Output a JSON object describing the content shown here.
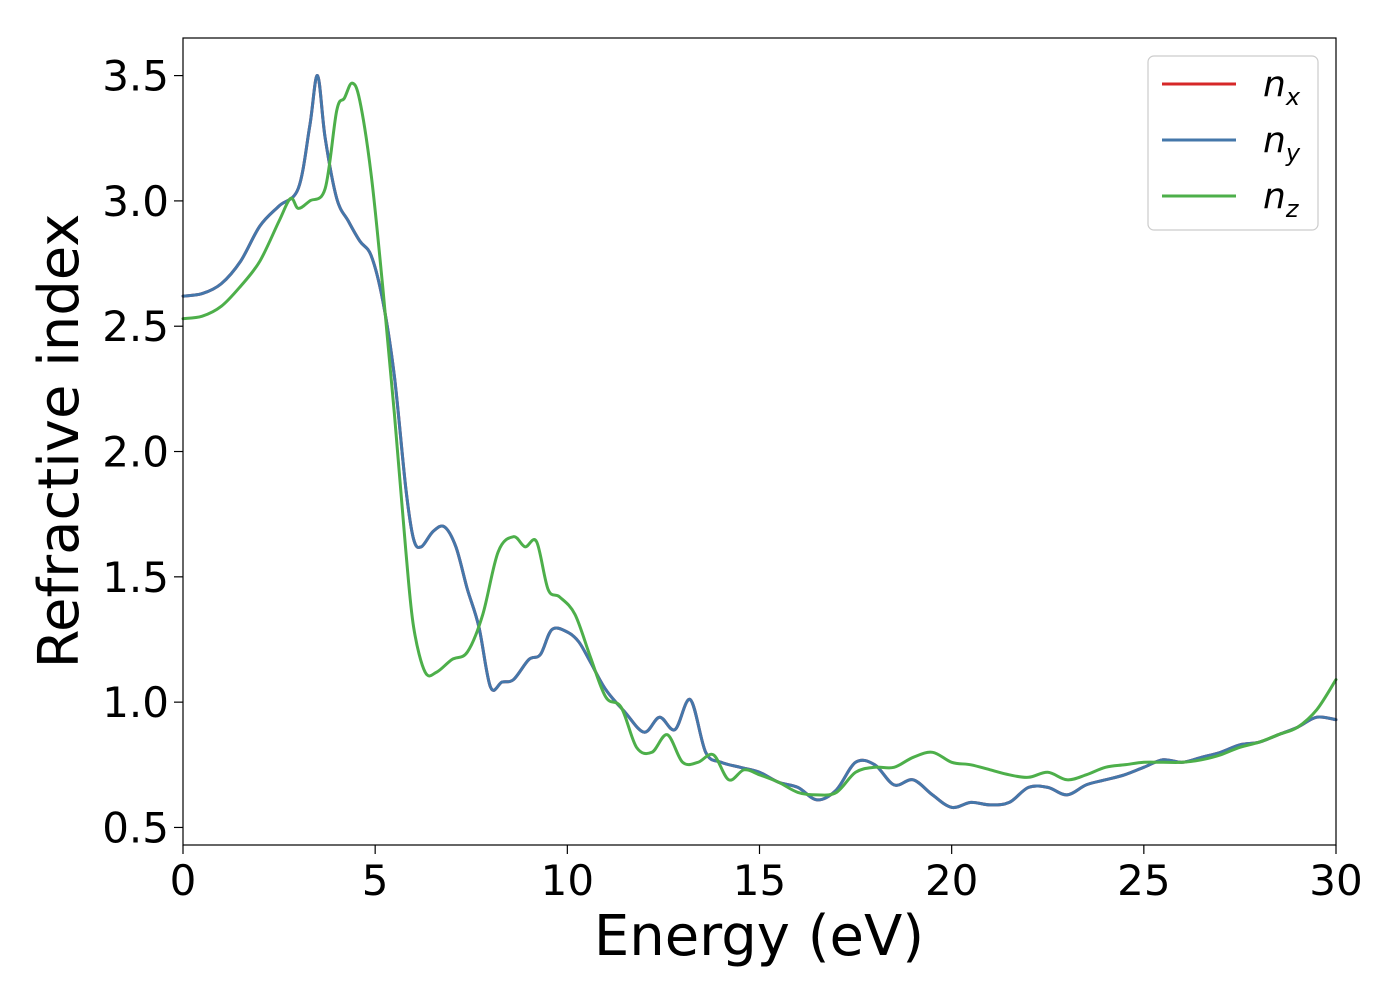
{
  "chart_data": {
    "type": "line",
    "xlabel": "Energy (eV)",
    "ylabel": "Refractive index",
    "xlim": [
      0,
      30
    ],
    "ylim": [
      0.43,
      3.65
    ],
    "xticks": [
      "0",
      "5",
      "10",
      "15",
      "20",
      "25",
      "30"
    ],
    "yticks": [
      "0.5",
      "1.0",
      "1.5",
      "2.0",
      "2.5",
      "3.0",
      "3.5"
    ],
    "grid": false,
    "legend_position": "top-right",
    "series": [
      {
        "name": "n_x",
        "label_base": "n",
        "label_sub": "x",
        "color": "#d62728",
        "x": [
          0,
          0.5,
          1,
          1.5,
          2,
          2.5,
          3,
          3.3,
          3.5,
          3.7,
          4,
          4.3,
          4.6,
          4.9,
          5.2,
          5.5,
          5.8,
          6,
          6.2,
          6.5,
          6.8,
          7.1,
          7.4,
          7.7,
          8,
          8.3,
          8.6,
          9,
          9.3,
          9.6,
          10,
          10.3,
          10.6,
          11,
          11.5,
          12,
          12.4,
          12.8,
          13.2,
          13.6,
          14,
          14.5,
          15,
          15.5,
          16,
          16.5,
          17,
          17.5,
          18,
          18.5,
          19,
          19.5,
          20,
          20.5,
          21,
          21.5,
          22,
          22.5,
          23,
          23.5,
          24,
          24.5,
          25,
          25.5,
          26,
          26.5,
          27,
          27.5,
          28,
          28.5,
          29,
          29.5,
          30
        ],
        "y": [
          2.62,
          2.63,
          2.67,
          2.76,
          2.9,
          2.98,
          3.05,
          3.3,
          3.5,
          3.25,
          3.01,
          2.92,
          2.84,
          2.78,
          2.6,
          2.3,
          1.85,
          1.65,
          1.62,
          1.68,
          1.7,
          1.62,
          1.45,
          1.3,
          1.06,
          1.08,
          1.09,
          1.17,
          1.19,
          1.29,
          1.28,
          1.24,
          1.16,
          1.05,
          0.96,
          0.88,
          0.94,
          0.89,
          1.01,
          0.8,
          0.76,
          0.74,
          0.72,
          0.68,
          0.66,
          0.61,
          0.65,
          0.76,
          0.75,
          0.67,
          0.69,
          0.63,
          0.58,
          0.6,
          0.59,
          0.6,
          0.66,
          0.66,
          0.63,
          0.67,
          0.69,
          0.71,
          0.74,
          0.77,
          0.76,
          0.78,
          0.8,
          0.83,
          0.84,
          0.87,
          0.9,
          0.94,
          0.93
        ]
      },
      {
        "name": "n_y",
        "label_base": "n",
        "label_sub": "y",
        "color": "#4477aa",
        "x": [
          0,
          0.5,
          1,
          1.5,
          2,
          2.5,
          3,
          3.3,
          3.5,
          3.7,
          4,
          4.3,
          4.6,
          4.9,
          5.2,
          5.5,
          5.8,
          6,
          6.2,
          6.5,
          6.8,
          7.1,
          7.4,
          7.7,
          8,
          8.3,
          8.6,
          9,
          9.3,
          9.6,
          10,
          10.3,
          10.6,
          11,
          11.5,
          12,
          12.4,
          12.8,
          13.2,
          13.6,
          14,
          14.5,
          15,
          15.5,
          16,
          16.5,
          17,
          17.5,
          18,
          18.5,
          19,
          19.5,
          20,
          20.5,
          21,
          21.5,
          22,
          22.5,
          23,
          23.5,
          24,
          24.5,
          25,
          25.5,
          26,
          26.5,
          27,
          27.5,
          28,
          28.5,
          29,
          29.5,
          30
        ],
        "y": [
          2.62,
          2.63,
          2.67,
          2.76,
          2.9,
          2.98,
          3.05,
          3.3,
          3.5,
          3.25,
          3.01,
          2.92,
          2.84,
          2.78,
          2.6,
          2.3,
          1.85,
          1.65,
          1.62,
          1.68,
          1.7,
          1.62,
          1.45,
          1.3,
          1.06,
          1.08,
          1.09,
          1.17,
          1.19,
          1.29,
          1.28,
          1.24,
          1.16,
          1.05,
          0.96,
          0.88,
          0.94,
          0.89,
          1.01,
          0.8,
          0.76,
          0.74,
          0.72,
          0.68,
          0.66,
          0.61,
          0.65,
          0.76,
          0.75,
          0.67,
          0.69,
          0.63,
          0.58,
          0.6,
          0.59,
          0.6,
          0.66,
          0.66,
          0.63,
          0.67,
          0.69,
          0.71,
          0.74,
          0.77,
          0.76,
          0.78,
          0.8,
          0.83,
          0.84,
          0.87,
          0.9,
          0.94,
          0.93
        ]
      },
      {
        "name": "n_z",
        "label_base": "n",
        "label_sub": "z",
        "color": "#4daf4a",
        "x": [
          0,
          0.5,
          1,
          1.5,
          2,
          2.5,
          2.8,
          3,
          3.3,
          3.7,
          4,
          4.2,
          4.4,
          4.6,
          4.9,
          5.2,
          5.5,
          5.8,
          6,
          6.3,
          6.6,
          7,
          7.4,
          7.8,
          8.2,
          8.6,
          8.9,
          9.2,
          9.5,
          9.8,
          10.2,
          10.6,
          11,
          11.4,
          11.8,
          12.2,
          12.6,
          13,
          13.4,
          13.8,
          14.2,
          14.6,
          15,
          15.5,
          16,
          16.5,
          17,
          17.5,
          18,
          18.5,
          19,
          19.5,
          20,
          20.5,
          21,
          21.5,
          22,
          22.5,
          23,
          23.5,
          24,
          24.5,
          25,
          25.5,
          26,
          26.5,
          27,
          27.5,
          28,
          28.5,
          29,
          29.5,
          30
        ],
        "y": [
          2.53,
          2.54,
          2.58,
          2.66,
          2.76,
          2.92,
          3.01,
          2.97,
          3.0,
          3.05,
          3.36,
          3.41,
          3.47,
          3.4,
          3.1,
          2.65,
          2.15,
          1.6,
          1.3,
          1.12,
          1.12,
          1.17,
          1.2,
          1.35,
          1.6,
          1.66,
          1.62,
          1.64,
          1.45,
          1.42,
          1.35,
          1.18,
          1.02,
          0.98,
          0.82,
          0.8,
          0.87,
          0.76,
          0.76,
          0.79,
          0.69,
          0.73,
          0.71,
          0.68,
          0.64,
          0.63,
          0.64,
          0.72,
          0.74,
          0.74,
          0.78,
          0.8,
          0.76,
          0.75,
          0.73,
          0.71,
          0.7,
          0.72,
          0.69,
          0.71,
          0.74,
          0.75,
          0.76,
          0.76,
          0.76,
          0.77,
          0.79,
          0.82,
          0.84,
          0.87,
          0.9,
          0.97,
          1.09
        ]
      }
    ]
  }
}
